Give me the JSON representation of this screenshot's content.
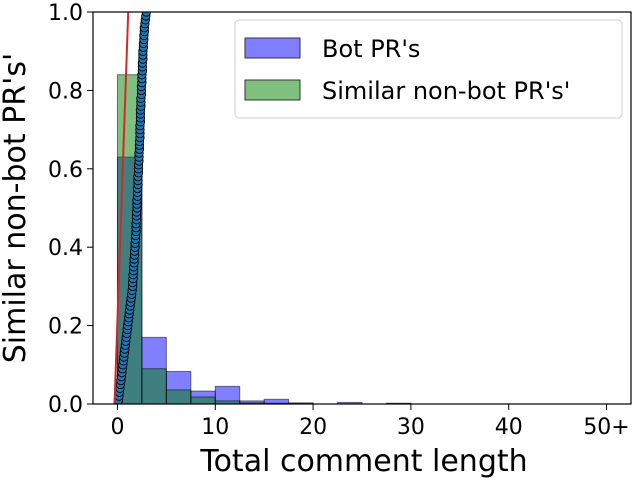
{
  "chart_data": {
    "type": "bar",
    "xlabel": "Total comment length",
    "ylabel": "Similar non-bot PR's'",
    "xlim": [
      -2.5,
      52.5
    ],
    "ylim": [
      0,
      1.0
    ],
    "x_ticks": [
      {
        "value": 0,
        "label": "0"
      },
      {
        "value": 10,
        "label": "10"
      },
      {
        "value": 20,
        "label": "20"
      },
      {
        "value": 30,
        "label": "30"
      },
      {
        "value": 40,
        "label": "40"
      },
      {
        "value": 50,
        "label": "50+"
      }
    ],
    "y_ticks": [
      {
        "value": 0.0,
        "label": "0.0"
      },
      {
        "value": 0.2,
        "label": "0.2"
      },
      {
        "value": 0.4,
        "label": "0.4"
      },
      {
        "value": 0.6,
        "label": "0.6"
      },
      {
        "value": 0.8,
        "label": "0.8"
      },
      {
        "value": 1.0,
        "label": "1.0"
      }
    ],
    "bin_width": 2.5,
    "legend_position": "top-right",
    "series": [
      {
        "name": "Bot PR's",
        "color": "#0000ff",
        "bins": [
          {
            "x": 0,
            "value": 0.63
          },
          {
            "x": 2.5,
            "value": 0.17
          },
          {
            "x": 5,
            "value": 0.083
          },
          {
            "x": 7.5,
            "value": 0.033
          },
          {
            "x": 10,
            "value": 0.045
          },
          {
            "x": 12.5,
            "value": 0.008
          },
          {
            "x": 15,
            "value": 0.012
          },
          {
            "x": 17.5,
            "value": 0.003
          },
          {
            "x": 22.5,
            "value": 0.004
          },
          {
            "x": 27.5,
            "value": 0.002
          }
        ]
      },
      {
        "name": "Similar non-bot PR's'",
        "color": "#008000",
        "bins": [
          {
            "x": 0,
            "value": 0.84
          },
          {
            "x": 2.5,
            "value": 0.09
          },
          {
            "x": 5,
            "value": 0.036
          },
          {
            "x": 7.5,
            "value": 0.018
          },
          {
            "x": 10,
            "value": 0.008
          },
          {
            "x": 12.5,
            "value": 0.003
          },
          {
            "x": 15,
            "value": 0.002
          },
          {
            "x": 17.5,
            "value": 0.001
          },
          {
            "x": 27.5,
            "value": 0.001
          }
        ]
      }
    ],
    "overlay": {
      "scatter_color": "#1f77b4",
      "scatter_points": [
        [
          0.05,
          0.0
        ],
        [
          0.1,
          0.01
        ],
        [
          0.15,
          0.02
        ],
        [
          0.2,
          0.03
        ],
        [
          0.25,
          0.04
        ],
        [
          0.3,
          0.05
        ],
        [
          0.35,
          0.06
        ],
        [
          0.4,
          0.07
        ],
        [
          0.45,
          0.08
        ],
        [
          0.5,
          0.09
        ],
        [
          0.55,
          0.1
        ],
        [
          0.6,
          0.11
        ],
        [
          0.65,
          0.12
        ],
        [
          0.7,
          0.13
        ],
        [
          0.75,
          0.14
        ],
        [
          0.8,
          0.15
        ],
        [
          0.85,
          0.16
        ],
        [
          0.9,
          0.17
        ],
        [
          0.95,
          0.18
        ],
        [
          1.0,
          0.19
        ],
        [
          1.05,
          0.2
        ],
        [
          1.1,
          0.21
        ],
        [
          1.15,
          0.22
        ],
        [
          1.2,
          0.23
        ],
        [
          1.25,
          0.24
        ],
        [
          1.3,
          0.25
        ],
        [
          1.35,
          0.26
        ],
        [
          1.4,
          0.27
        ],
        [
          1.45,
          0.28
        ],
        [
          1.5,
          0.29
        ],
        [
          1.55,
          0.3
        ],
        [
          1.55,
          0.31
        ],
        [
          1.6,
          0.32
        ],
        [
          1.6,
          0.33
        ],
        [
          1.65,
          0.34
        ],
        [
          1.65,
          0.35
        ],
        [
          1.7,
          0.36
        ],
        [
          1.7,
          0.37
        ],
        [
          1.75,
          0.38
        ],
        [
          1.75,
          0.39
        ],
        [
          1.8,
          0.4
        ],
        [
          1.8,
          0.41
        ],
        [
          1.85,
          0.42
        ],
        [
          1.85,
          0.43
        ],
        [
          1.9,
          0.44
        ],
        [
          1.9,
          0.45
        ],
        [
          1.9,
          0.46
        ],
        [
          1.95,
          0.47
        ],
        [
          1.95,
          0.48
        ],
        [
          1.95,
          0.49
        ],
        [
          2.0,
          0.5
        ],
        [
          2.0,
          0.51
        ],
        [
          2.0,
          0.52
        ],
        [
          2.05,
          0.53
        ],
        [
          2.05,
          0.54
        ],
        [
          2.05,
          0.55
        ],
        [
          2.1,
          0.56
        ],
        [
          2.1,
          0.57
        ],
        [
          2.1,
          0.58
        ],
        [
          2.15,
          0.59
        ],
        [
          2.15,
          0.6
        ],
        [
          2.15,
          0.61
        ],
        [
          2.2,
          0.62
        ],
        [
          2.2,
          0.63
        ],
        [
          2.2,
          0.64
        ],
        [
          2.25,
          0.65
        ],
        [
          2.25,
          0.66
        ],
        [
          2.25,
          0.67
        ],
        [
          2.3,
          0.68
        ],
        [
          2.3,
          0.69
        ],
        [
          2.3,
          0.7
        ],
        [
          2.3,
          0.71
        ],
        [
          2.35,
          0.72
        ],
        [
          2.35,
          0.73
        ],
        [
          2.35,
          0.74
        ],
        [
          2.35,
          0.75
        ],
        [
          2.4,
          0.76
        ],
        [
          2.4,
          0.77
        ],
        [
          2.4,
          0.78
        ],
        [
          2.45,
          0.79
        ],
        [
          2.45,
          0.8
        ],
        [
          2.45,
          0.81
        ],
        [
          2.5,
          0.82
        ],
        [
          2.5,
          0.83
        ],
        [
          2.5,
          0.84
        ],
        [
          2.55,
          0.85
        ],
        [
          2.55,
          0.86
        ],
        [
          2.55,
          0.87
        ],
        [
          2.6,
          0.88
        ],
        [
          2.6,
          0.89
        ],
        [
          2.6,
          0.9
        ],
        [
          2.65,
          0.91
        ],
        [
          2.65,
          0.92
        ],
        [
          2.7,
          0.93
        ],
        [
          2.7,
          0.94
        ],
        [
          2.75,
          0.95
        ],
        [
          2.75,
          0.96
        ],
        [
          2.8,
          0.97
        ],
        [
          2.85,
          0.98
        ],
        [
          2.9,
          0.99
        ],
        [
          2.95,
          1.0
        ]
      ],
      "line_color": "#d62728",
      "line_points": [
        [
          -0.3,
          0.0
        ],
        [
          1.1,
          1.0
        ]
      ]
    }
  }
}
